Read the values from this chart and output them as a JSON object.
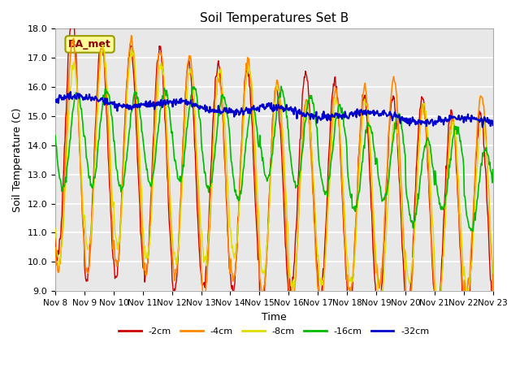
{
  "title": "Soil Temperatures Set B",
  "xlabel": "Time",
  "ylabel": "Soil Temperature (C)",
  "ylim": [
    9.0,
    18.0
  ],
  "yticks": [
    9.0,
    10.0,
    11.0,
    12.0,
    13.0,
    14.0,
    15.0,
    16.0,
    17.0,
    18.0
  ],
  "xtick_labels": [
    "Nov 8",
    "Nov 9",
    "Nov 10",
    "Nov 11",
    "Nov 12",
    "Nov 13",
    "Nov 14",
    "Nov 15",
    "Nov 16",
    "Nov 17",
    "Nov 18",
    "Nov 19",
    "Nov 20",
    "Nov 21",
    "Nov 22",
    "Nov 23"
  ],
  "annotation_text": "BA_met",
  "colors": {
    "-2cm": "#cc0000",
    "-4cm": "#ff8800",
    "-8cm": "#dddd00",
    "-16cm": "#00bb00",
    "-32cm": "#0000cc"
  },
  "plot_bg": "#e8e8e8",
  "days": 15,
  "n_points": 720
}
